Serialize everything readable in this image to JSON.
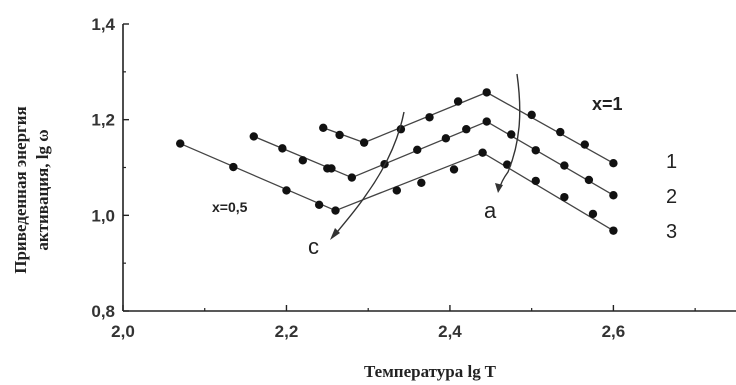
{
  "chart_data": {
    "type": "line",
    "xlabel": "Температура lg T",
    "ylabel_line1": "Приведенная энергия",
    "ylabel_line2": "активация, lg ω",
    "xlim": [
      2.0,
      2.75
    ],
    "ylim": [
      0.8,
      1.4
    ],
    "xticks": [
      "2,0",
      "2,2",
      "2,4",
      "2,6"
    ],
    "yticks": [
      "0,8",
      "1,0",
      "1,2",
      "1,4"
    ],
    "xtick_values": [
      2.0,
      2.2,
      2.4,
      2.6
    ],
    "ytick_values": [
      0.8,
      1.0,
      1.2,
      1.4
    ],
    "grid": false,
    "series": [
      {
        "name": "1",
        "line": [
          [
            2.295,
            1.152
          ],
          [
            2.445,
            1.257
          ],
          [
            2.6,
            1.109
          ]
        ],
        "points": [
          [
            2.245,
            1.183
          ],
          [
            2.265,
            1.168
          ],
          [
            2.295,
            1.152
          ],
          [
            2.34,
            1.18
          ],
          [
            2.375,
            1.205
          ],
          [
            2.41,
            1.238
          ],
          [
            2.445,
            1.257
          ],
          [
            2.5,
            1.21
          ],
          [
            2.535,
            1.174
          ],
          [
            2.565,
            1.148
          ],
          [
            2.6,
            1.109
          ]
        ]
      },
      {
        "name": "2",
        "line": [
          [
            2.16,
            1.165
          ],
          [
            2.28,
            1.079
          ],
          [
            2.445,
            1.196
          ],
          [
            2.6,
            1.042
          ]
        ],
        "points": [
          [
            2.16,
            1.165
          ],
          [
            2.195,
            1.14
          ],
          [
            2.22,
            1.115
          ],
          [
            2.25,
            1.098
          ],
          [
            2.255,
            1.098
          ],
          [
            2.28,
            1.079
          ],
          [
            2.32,
            1.107
          ],
          [
            2.36,
            1.137
          ],
          [
            2.395,
            1.161
          ],
          [
            2.42,
            1.18
          ],
          [
            2.445,
            1.196
          ],
          [
            2.475,
            1.169
          ],
          [
            2.505,
            1.136
          ],
          [
            2.54,
            1.104
          ],
          [
            2.57,
            1.074
          ],
          [
            2.6,
            1.042
          ]
        ]
      },
      {
        "name": "3",
        "line": [
          [
            2.07,
            1.15
          ],
          [
            2.26,
            1.01
          ],
          [
            2.44,
            1.131
          ],
          [
            2.6,
            0.968
          ]
        ],
        "points": [
          [
            2.07,
            1.15
          ],
          [
            2.135,
            1.101
          ],
          [
            2.2,
            1.052
          ],
          [
            2.24,
            1.022
          ],
          [
            2.26,
            1.01
          ],
          [
            2.335,
            1.052
          ],
          [
            2.365,
            1.068
          ],
          [
            2.405,
            1.096
          ],
          [
            2.44,
            1.131
          ],
          [
            2.47,
            1.106
          ],
          [
            2.505,
            1.072
          ],
          [
            2.54,
            1.038
          ],
          [
            2.575,
            1.003
          ],
          [
            2.6,
            0.968
          ]
        ]
      }
    ],
    "annotations": {
      "x1": "x=1",
      "x05": "x=0,5",
      "a": "a",
      "c": "c",
      "n1": "1",
      "n2": "2",
      "n3": "3"
    }
  }
}
